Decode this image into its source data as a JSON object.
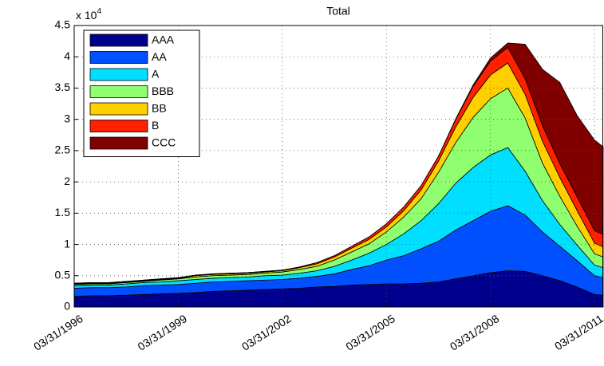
{
  "chart_data": {
    "type": "stacked_area",
    "title": "Total",
    "y_multiplier": "x 10",
    "y_multiplier_exponent": "4",
    "x": [
      1996.25,
      1996.75,
      1997.25,
      1997.75,
      1998.25,
      1998.75,
      1999.25,
      1999.75,
      2000.25,
      2000.75,
      2001.25,
      2001.75,
      2002.25,
      2002.75,
      2003.25,
      2003.75,
      2004.25,
      2004.75,
      2005.25,
      2005.75,
      2006.25,
      2006.75,
      2007.25,
      2007.75,
      2008.25,
      2008.75,
      2009.25,
      2009.75,
      2010.25,
      2010.75,
      2011.25,
      2011.5
    ],
    "series": [
      {
        "name": "AAA",
        "color": "#00008f",
        "values": [
          0.17,
          0.18,
          0.18,
          0.19,
          0.2,
          0.21,
          0.22,
          0.23,
          0.25,
          0.26,
          0.27,
          0.28,
          0.29,
          0.3,
          0.32,
          0.33,
          0.35,
          0.36,
          0.37,
          0.37,
          0.38,
          0.4,
          0.45,
          0.5,
          0.55,
          0.58,
          0.57,
          0.5,
          0.42,
          0.32,
          0.2,
          0.19
        ]
      },
      {
        "name": "AA",
        "color": "#0050ff",
        "values": [
          0.13,
          0.13,
          0.13,
          0.13,
          0.14,
          0.14,
          0.14,
          0.15,
          0.15,
          0.15,
          0.15,
          0.15,
          0.15,
          0.16,
          0.17,
          0.2,
          0.25,
          0.3,
          0.38,
          0.45,
          0.55,
          0.65,
          0.78,
          0.88,
          0.98,
          1.04,
          0.9,
          0.7,
          0.55,
          0.42,
          0.3,
          0.28
        ]
      },
      {
        "name": "A",
        "color": "#00dfff",
        "values": [
          0.04,
          0.04,
          0.04,
          0.05,
          0.05,
          0.05,
          0.06,
          0.06,
          0.06,
          0.06,
          0.06,
          0.07,
          0.07,
          0.08,
          0.09,
          0.12,
          0.15,
          0.2,
          0.25,
          0.35,
          0.45,
          0.6,
          0.75,
          0.85,
          0.9,
          0.93,
          0.7,
          0.5,
          0.35,
          0.25,
          0.17,
          0.16
        ]
      },
      {
        "name": "BBB",
        "color": "#8fff70",
        "values": [
          0.02,
          0.02,
          0.02,
          0.02,
          0.02,
          0.03,
          0.03,
          0.04,
          0.04,
          0.04,
          0.04,
          0.04,
          0.05,
          0.06,
          0.07,
          0.1,
          0.13,
          0.15,
          0.2,
          0.27,
          0.35,
          0.5,
          0.65,
          0.8,
          0.9,
          0.95,
          0.85,
          0.6,
          0.45,
          0.3,
          0.18,
          0.17
        ]
      },
      {
        "name": "BB",
        "color": "#ffcf00",
        "values": [
          0.01,
          0.01,
          0.01,
          0.01,
          0.01,
          0.01,
          0.01,
          0.02,
          0.02,
          0.02,
          0.02,
          0.02,
          0.02,
          0.03,
          0.04,
          0.05,
          0.06,
          0.07,
          0.08,
          0.1,
          0.14,
          0.18,
          0.25,
          0.32,
          0.38,
          0.4,
          0.38,
          0.35,
          0.3,
          0.25,
          0.17,
          0.16
        ]
      },
      {
        "name": "B",
        "color": "#ff2000",
        "values": [
          0.01,
          0.01,
          0.01,
          0.01,
          0.01,
          0.01,
          0.01,
          0.01,
          0.01,
          0.01,
          0.01,
          0.01,
          0.01,
          0.01,
          0.02,
          0.02,
          0.03,
          0.04,
          0.05,
          0.06,
          0.07,
          0.08,
          0.12,
          0.18,
          0.22,
          0.25,
          0.25,
          0.25,
          0.22,
          0.22,
          0.2,
          0.2
        ]
      },
      {
        "name": "CCC",
        "color": "#800000",
        "values": [
          0,
          0,
          0,
          0,
          0,
          0,
          0,
          0,
          0,
          0,
          0,
          0,
          0,
          0,
          0,
          0,
          0,
          0,
          0,
          0,
          0,
          0,
          0.01,
          0.02,
          0.05,
          0.07,
          0.55,
          0.9,
          1.3,
          1.3,
          1.45,
          1.4
        ]
      }
    ],
    "xlim": [
      1996.25,
      2011.5
    ],
    "xticks": [
      {
        "value": 1996.25,
        "label": "03/31/1996"
      },
      {
        "value": 1999.25,
        "label": "03/31/1999"
      },
      {
        "value": 2002.25,
        "label": "03/31/2002"
      },
      {
        "value": 2005.25,
        "label": "03/31/2005"
      },
      {
        "value": 2008.25,
        "label": "03/31/2008"
      },
      {
        "value": 2011.25,
        "label": "03/31/2011"
      }
    ],
    "ylim": [
      0,
      4.5
    ],
    "yticks": [
      0,
      0.5,
      1,
      1.5,
      2,
      2.5,
      3,
      3.5,
      4,
      4.5
    ],
    "grid": true,
    "legend": "upper-left"
  }
}
